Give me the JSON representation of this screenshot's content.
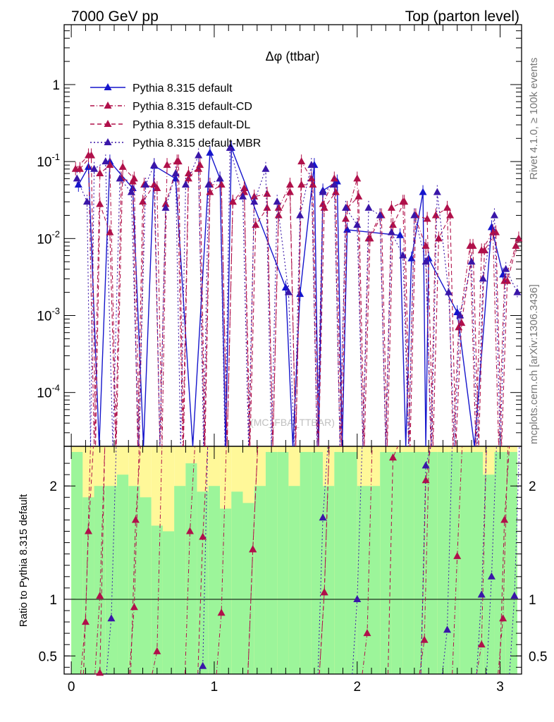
{
  "chart_data": {
    "type": "line",
    "title": "Δφ (ttbar)",
    "header_left": "7000 GeV pp",
    "header_right": "Top (parton level)",
    "side_text_top": "Rivet 4.1.0, ≥ 100k events",
    "side_text_bottom": "mcplots.cern.ch [arXiv:1306.3436]",
    "watermark": "(MC_FBA_TTBAR)",
    "xlabel": "",
    "ylabel": "",
    "ratio_ylabel": "Ratio to Pythia 8.315 default",
    "xlim": [
      -0.05,
      3.15
    ],
    "ylim": [
      2e-05,
      6
    ],
    "yscale": "log",
    "ratio_ylim": [
      0.34,
      2.35
    ],
    "x_ticks": [
      "0",
      "1",
      "2",
      "3"
    ],
    "y_ticks": [
      "10^-4",
      "10^-3",
      "10^-2",
      "10^-1",
      "1"
    ],
    "ratio_ticks": [
      "0.5",
      "1",
      "2"
    ],
    "legend": [
      {
        "name": "Pythia 8.315 default",
        "color": "#1515cc",
        "style": "solid"
      },
      {
        "name": "Pythia 8.315 default-CD",
        "color": "#b0104a",
        "style": "dashdot"
      },
      {
        "name": "Pythia 8.315 default-DL",
        "color": "#b0104a",
        "style": "dashed"
      },
      {
        "name": "Pythia 8.315 default-MBR",
        "color": "#3a16a8",
        "style": "dotted"
      }
    ],
    "series": [
      {
        "name": "Pythia 8.315 default",
        "x": [
          0.05,
          0.12,
          0.27,
          0.43,
          0.58,
          0.73,
          0.97,
          1.04,
          1.12,
          1.5,
          1.6,
          1.7,
          1.76,
          1.86,
          1.93,
          2.3,
          2.38,
          2.46,
          2.5,
          2.7,
          2.94,
          3.02
        ],
        "y": [
          0.05,
          0.085,
          0.1,
          0.045,
          0.088,
          0.06,
          0.13,
          0.06,
          0.15,
          0.0023,
          0.0019,
          0.09,
          0.042,
          0.055,
          0.013,
          0.011,
          0.0055,
          0.04,
          0.0055,
          0.0011,
          0.014,
          0.0034
        ]
      },
      {
        "name": "Pythia 8.315 default-CD",
        "x": [
          0.03,
          0.12,
          0.2,
          0.27,
          0.36,
          0.44,
          0.51,
          0.6,
          0.67,
          0.74,
          0.82,
          0.89,
          0.97,
          1.05,
          1.13,
          1.21,
          1.28,
          1.37,
          1.45,
          1.53,
          1.61,
          1.68,
          1.76,
          1.84,
          1.92,
          2.0,
          2.08,
          2.16,
          2.24,
          2.32,
          2.4,
          2.48,
          2.55,
          2.63,
          2.71,
          2.79,
          2.87,
          2.95,
          3.03,
          3.11
        ],
        "y": [
          0.08,
          0.12,
          0.07,
          0.09,
          0.085,
          0.06,
          0.05,
          0.045,
          0.09,
          0.1,
          0.07,
          0.08,
          0.05,
          0.05,
          0.03,
          0.045,
          0.035,
          0.038,
          0.025,
          0.05,
          0.1,
          0.06,
          0.028,
          0.06,
          0.018,
          0.06,
          0.01,
          0.02,
          0.025,
          0.03,
          0.02,
          0.008,
          0.02,
          0.025,
          0.0007,
          0.008,
          0.007,
          0.012,
          0.0028,
          0.008
        ]
      },
      {
        "name": "Pythia 8.315 default-DL",
        "x": [
          0.06,
          0.14,
          0.2,
          0.27,
          0.35,
          0.43,
          0.5,
          0.58,
          0.66,
          0.75,
          0.82,
          0.9,
          0.97,
          1.05,
          1.13,
          1.21,
          1.29,
          1.37,
          1.45,
          1.53,
          1.61,
          1.69,
          1.77,
          1.85,
          1.93,
          2.01,
          2.09,
          2.17,
          2.25,
          2.33,
          2.41,
          2.49,
          2.57,
          2.65,
          2.73,
          2.81,
          2.89,
          2.97,
          3.05,
          3.13
        ],
        "y": [
          0.08,
          0.12,
          0.028,
          0.012,
          0.06,
          0.055,
          0.03,
          0.05,
          0.028,
          0.1,
          0.06,
          0.09,
          0.04,
          0.05,
          0.03,
          0.04,
          0.015,
          0.025,
          0.02,
          0.04,
          0.05,
          0.05,
          0.025,
          0.04,
          0.025,
          0.035,
          0.01,
          0.02,
          0.015,
          0.03,
          0.02,
          0.018,
          0.01,
          0.02,
          0.0008,
          0.008,
          0.007,
          0.012,
          0.0028,
          0.01
        ]
      },
      {
        "name": "Pythia 8.315 default-MBR",
        "x": [
          0.04,
          0.11,
          0.16,
          0.24,
          0.34,
          0.42,
          0.52,
          0.58,
          0.66,
          0.73,
          0.8,
          0.89,
          0.96,
          1.04,
          1.11,
          1.2,
          1.28,
          1.36,
          1.44,
          1.52,
          1.6,
          1.68,
          1.76,
          1.84,
          1.92,
          2.0,
          2.08,
          2.16,
          2.24,
          2.32,
          2.4,
          2.48,
          2.56,
          2.64,
          2.72,
          2.8,
          2.88,
          2.96,
          3.04,
          3.12
        ],
        "y": [
          0.06,
          0.03,
          0.08,
          0.1,
          0.06,
          0.04,
          0.05,
          0.09,
          0.025,
          0.07,
          0.05,
          0.12,
          0.05,
          0.06,
          0.15,
          0.035,
          0.03,
          0.08,
          0.03,
          0.002,
          0.02,
          0.09,
          0.04,
          0.05,
          0.025,
          0.015,
          0.025,
          0.02,
          0.012,
          0.006,
          0.02,
          0.005,
          0.04,
          0.002,
          0.001,
          0.005,
          0.003,
          0.02,
          0.004,
          0.002
        ]
      }
    ],
    "ratio_series": [
      {
        "name": "Pythia 8.315 default-CD",
        "x": [
          0.1,
          0.2,
          0.44,
          0.6,
          0.83,
          1.05,
          1.27,
          1.77,
          2.07,
          2.47,
          2.7,
          2.87,
          3.02
        ],
        "y": [
          0.8,
          1.03,
          0.93,
          0.54,
          1.6,
          0.88,
          1.44,
          1.06,
          0.7,
          0.64,
          1.38,
          0.6,
          0.83
        ]
      },
      {
        "name": "Pythia 8.315 default-DL",
        "x": [
          0.12,
          0.2,
          0.45,
          0.92,
          1.27,
          1.77,
          2.25,
          2.48,
          3.03
        ],
        "y": [
          1.6,
          0.35,
          1.7,
          1.55,
          1.44,
          1.06,
          2.25,
          2.05,
          1.7
        ]
      },
      {
        "name": "Pythia 8.315 default-MBR",
        "x": [
          0.28,
          0.92,
          1.76,
          2.0,
          2.48,
          2.63,
          2.87,
          2.94,
          3.1
        ],
        "y": [
          0.83,
          0.41,
          1.72,
          1.0,
          2.18,
          0.73,
          1.04,
          1.2,
          1.03
        ]
      }
    ],
    "ratio_band": {
      "x_edges": [
        0.0,
        0.08,
        0.16,
        0.24,
        0.32,
        0.4,
        0.48,
        0.56,
        0.64,
        0.72,
        0.8,
        0.88,
        0.96,
        1.04,
        1.12,
        1.2,
        1.28,
        1.36,
        1.44,
        1.52,
        1.6,
        1.68,
        1.76,
        1.84,
        1.92,
        2.0,
        2.08,
        2.16,
        2.24,
        2.32,
        2.4,
        2.48,
        2.56,
        2.64,
        2.72,
        2.8,
        2.88,
        2.96,
        3.04,
        3.12
      ],
      "green_hi": [
        2.3,
        1.9,
        2.0,
        2.0,
        2.1,
        2.0,
        1.9,
        1.65,
        1.6,
        2.0,
        2.2,
        1.95,
        2.0,
        1.8,
        1.95,
        1.85,
        2.0,
        2.3,
        2.3,
        2.0,
        2.3,
        2.3,
        2.0,
        2.3,
        2.3,
        2.0,
        2.0,
        2.3,
        2.3,
        2.3,
        2.3,
        2.3,
        2.3,
        2.3,
        2.3,
        2.3,
        2.1,
        2.3,
        2.3
      ],
      "yellow_hi": [
        2.35,
        2.35,
        2.35,
        2.35,
        2.35,
        2.35,
        2.35,
        2.35,
        2.35,
        2.35,
        2.35,
        2.35,
        2.35,
        2.35,
        2.35,
        2.35,
        2.35,
        2.35,
        2.35,
        2.35,
        2.35,
        2.35,
        2.35,
        2.35,
        2.35,
        2.35,
        2.35,
        2.35,
        2.35,
        2.35,
        2.35,
        2.35,
        2.35,
        2.35,
        2.35,
        2.35,
        2.35,
        2.35,
        2.35
      ]
    }
  }
}
